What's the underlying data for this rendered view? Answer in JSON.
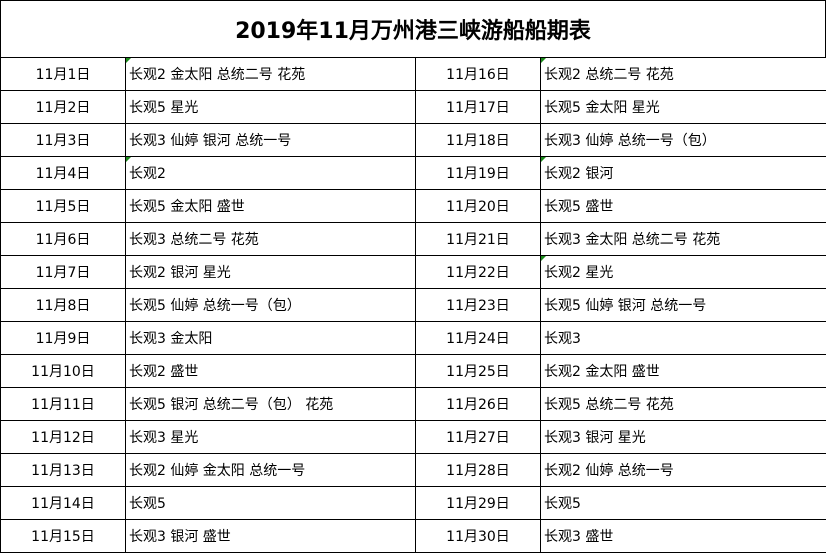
{
  "title": "2019年11月万州港三峡游船船期表",
  "comment_marker_color": "#1a8a1a",
  "left": [
    {
      "date": "11月1日",
      "ships": "长观2 金太阳 总统二号 花苑",
      "comment": true
    },
    {
      "date": "11月2日",
      "ships": "长观5 星光"
    },
    {
      "date": "11月3日",
      "ships": "长观3 仙婷 银河 总统一号"
    },
    {
      "date": "11月4日",
      "ships": "长观2",
      "comment": true
    },
    {
      "date": "11月5日",
      "ships": "长观5 金太阳 盛世"
    },
    {
      "date": "11月6日",
      "ships": "长观3 总统二号 花苑"
    },
    {
      "date": "11月7日",
      "ships": "长观2 银河 星光"
    },
    {
      "date": "11月8日",
      "ships": "长观5 仙婷 总统一号（包）"
    },
    {
      "date": "11月9日",
      "ships": "长观3 金太阳"
    },
    {
      "date": "11月10日",
      "ships": "长观2 盛世"
    },
    {
      "date": "11月11日",
      "ships": "长观5 银河 总统二号（包） 花苑"
    },
    {
      "date": "11月12日",
      "ships": "长观3 星光"
    },
    {
      "date": "11月13日",
      "ships": "长观2 仙婷 金太阳 总统一号"
    },
    {
      "date": "11月14日",
      "ships": "长观5"
    },
    {
      "date": "11月15日",
      "ships": "长观3 银河 盛世"
    }
  ],
  "right": [
    {
      "date": "11月16日",
      "ships": "长观2 总统二号 花苑",
      "comment": true
    },
    {
      "date": "11月17日",
      "ships": "长观5 金太阳 星光"
    },
    {
      "date": "11月18日",
      "ships": "长观3 仙婷 总统一号（包）"
    },
    {
      "date": "11月19日",
      "ships": "长观2 银河",
      "comment": true
    },
    {
      "date": "11月20日",
      "ships": "长观5 盛世"
    },
    {
      "date": "11月21日",
      "ships": "长观3 金太阳 总统二号 花苑"
    },
    {
      "date": "11月22日",
      "ships": "长观2 星光",
      "comment": true
    },
    {
      "date": "11月23日",
      "ships": "长观5 仙婷 银河 总统一号"
    },
    {
      "date": "11月24日",
      "ships": "长观3"
    },
    {
      "date": "11月25日",
      "ships": "长观2 金太阳 盛世"
    },
    {
      "date": "11月26日",
      "ships": "长观5 总统二号 花苑"
    },
    {
      "date": "11月27日",
      "ships": "长观3 银河 星光"
    },
    {
      "date": "11月28日",
      "ships": "长观2 仙婷 总统一号"
    },
    {
      "date": "11月29日",
      "ships": "长观5"
    },
    {
      "date": "11月30日",
      "ships": "长观3 盛世"
    }
  ]
}
